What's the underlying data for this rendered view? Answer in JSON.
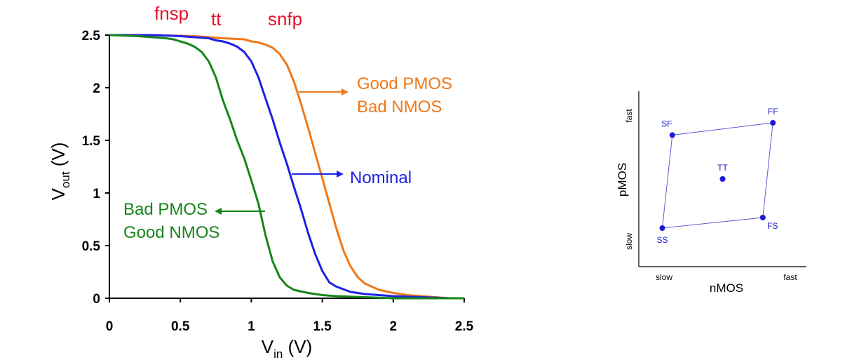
{
  "chart_data": [
    {
      "type": "line",
      "xlabel": {
        "main": "V",
        "sub": "in",
        "unit": " (V)"
      },
      "ylabel": {
        "main": "V",
        "sub": "out",
        "unit": " (V)"
      },
      "xlim": [
        0,
        2.5
      ],
      "ylim": [
        0,
        2.5
      ],
      "xticks": [
        "0",
        "0.5",
        "1",
        "1.5",
        "2",
        "2.5"
      ],
      "yticks": [
        "0",
        "0.5",
        "1",
        "1.5",
        "2",
        "2.5"
      ],
      "corner_labels": [
        "fnsp",
        "tt",
        "snfp"
      ],
      "series": [
        {
          "color": "#f07818",
          "x": [
            0,
            0.3,
            0.6,
            0.8,
            0.95,
            1.0,
            1.05,
            1.1,
            1.15,
            1.2,
            1.25,
            1.3,
            1.35,
            1.4,
            1.45,
            1.5,
            1.55,
            1.6,
            1.65,
            1.7,
            1.75,
            1.8,
            1.85,
            1.9,
            2.0,
            2.1,
            2.2,
            2.3,
            2.4,
            2.5
          ],
          "y": [
            2.5,
            2.5,
            2.49,
            2.47,
            2.46,
            2.44,
            2.43,
            2.41,
            2.38,
            2.32,
            2.22,
            2.06,
            1.85,
            1.62,
            1.38,
            1.14,
            0.9,
            0.66,
            0.45,
            0.3,
            0.2,
            0.14,
            0.11,
            0.08,
            0.05,
            0.03,
            0.02,
            0.01,
            0.0,
            0.0
          ]
        },
        {
          "color": "#1e22e6",
          "x": [
            0,
            0.3,
            0.5,
            0.6,
            0.7,
            0.75,
            0.8,
            0.85,
            0.9,
            0.95,
            1.0,
            1.05,
            1.1,
            1.15,
            1.2,
            1.25,
            1.3,
            1.35,
            1.4,
            1.45,
            1.5,
            1.55,
            1.6,
            1.7,
            1.8,
            1.9,
            2.0,
            2.2,
            2.4,
            2.5
          ],
          "y": [
            2.5,
            2.5,
            2.49,
            2.48,
            2.47,
            2.45,
            2.44,
            2.42,
            2.39,
            2.34,
            2.25,
            2.1,
            1.9,
            1.7,
            1.48,
            1.28,
            1.06,
            0.85,
            0.62,
            0.42,
            0.26,
            0.15,
            0.11,
            0.06,
            0.04,
            0.03,
            0.02,
            0.01,
            0.0,
            0.0
          ]
        },
        {
          "color": "#17861a",
          "x": [
            0,
            0.2,
            0.4,
            0.45,
            0.5,
            0.55,
            0.6,
            0.65,
            0.7,
            0.75,
            0.8,
            0.85,
            0.9,
            0.95,
            1.0,
            1.05,
            1.1,
            1.15,
            1.2,
            1.25,
            1.3,
            1.4,
            1.5,
            1.6,
            1.8,
            2.0,
            2.2,
            2.5
          ],
          "y": [
            2.5,
            2.49,
            2.47,
            2.46,
            2.44,
            2.42,
            2.39,
            2.34,
            2.25,
            2.1,
            1.88,
            1.7,
            1.5,
            1.33,
            1.12,
            0.9,
            0.6,
            0.35,
            0.2,
            0.12,
            0.08,
            0.05,
            0.03,
            0.02,
            0.01,
            0.0,
            0.0,
            0.0
          ]
        }
      ],
      "annotations": {
        "orange": [
          "Good PMOS",
          "Bad NMOS"
        ],
        "blue": [
          "Nominal"
        ],
        "green": [
          "Bad PMOS",
          "Good NMOS"
        ]
      }
    },
    {
      "type": "scatter",
      "xlabel": "nMOS",
      "ylabel": "pMOS",
      "x_ticks": [
        "slow",
        "fast"
      ],
      "y_ticks": [
        "slow",
        "fast"
      ],
      "color": "#1a1ad6",
      "points": [
        {
          "label": "SF",
          "x": 0.2,
          "y": 0.75
        },
        {
          "label": "FF",
          "x": 0.8,
          "y": 0.82
        },
        {
          "label": "TT",
          "x": 0.5,
          "y": 0.5
        },
        {
          "label": "FS",
          "x": 0.74,
          "y": 0.28
        },
        {
          "label": "SS",
          "x": 0.14,
          "y": 0.22
        }
      ],
      "outline": [
        "SS",
        "SF",
        "FF",
        "FS"
      ]
    }
  ]
}
